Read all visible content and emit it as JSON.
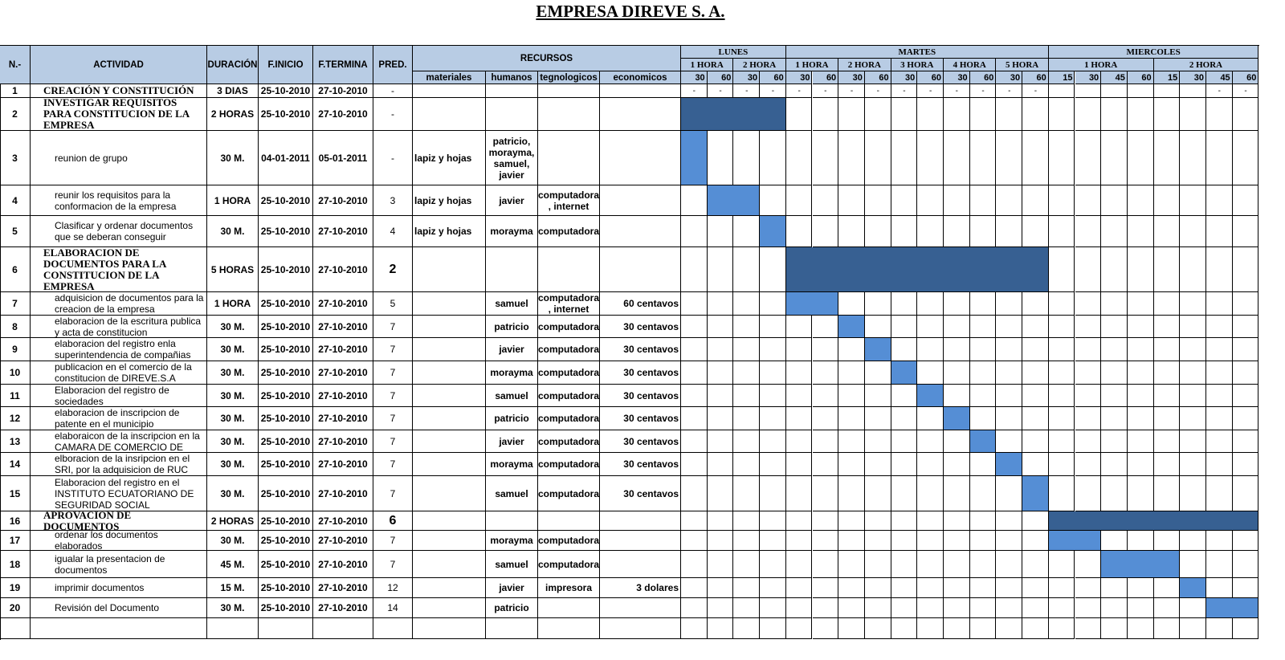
{
  "title": "EMPRESA DIREVE S. A.",
  "table": {
    "columns": [
      "N.-",
      "ACTIVIDAD",
      "DURACIÓN",
      "F.INICIO",
      "F.TERMINA",
      "PRED."
    ],
    "resources": {
      "label": "RECURSOS",
      "columns": [
        "materiales",
        "humanos",
        "tegnologicos",
        "economicos"
      ]
    },
    "days": [
      {
        "name": "LUNES",
        "hours": [
          {
            "label": "1 HORA",
            "minutes": [
              30,
              60
            ]
          },
          {
            "label": "2 HORA",
            "minutes": [
              30,
              60
            ]
          }
        ]
      },
      {
        "name": "MARTES",
        "hours": [
          {
            "label": "1 HORA",
            "minutes": [
              30,
              60
            ]
          },
          {
            "label": "2 HORA",
            "minutes": [
              30,
              60
            ]
          },
          {
            "label": "3 HORA",
            "minutes": [
              30,
              60
            ]
          },
          {
            "label": "4 HORA",
            "minutes": [
              30,
              60
            ]
          },
          {
            "label": "5 HORA",
            "minutes": [
              30,
              60
            ]
          }
        ]
      },
      {
        "name": "MIERCOLES",
        "hours": [
          {
            "label": "1 HORA",
            "minutes": [
              15,
              30,
              45,
              60
            ]
          },
          {
            "label": "2 HORA",
            "minutes": [
              15,
              30,
              45,
              60
            ]
          }
        ]
      }
    ],
    "first_row_timeline": [
      "-",
      "-",
      "-",
      "-",
      "-",
      "-",
      "-",
      "-",
      "-",
      "-",
      "-",
      "-",
      "-",
      "-",
      "-",
      "-"
    ],
    "rows": [
      [
        1,
        "CREACIÓN Y CONSTITUCIÓN",
        "3 DIAS",
        "25-10-2010",
        "27-10-2010",
        "-",
        null,
        null,
        null,
        null
      ],
      [
        2,
        "INVESTIGAR REQUISITOS PARA CONSTITUCION DE LA EMPRESA",
        "2 HORAS",
        "25-10-2010",
        "27-10-2010",
        "-",
        null,
        null,
        null,
        null
      ],
      [
        3,
        "reunion de grupo",
        "30 M.",
        "04-01-2011",
        "05-01-2011",
        "-",
        "lapiz y hojas",
        "patricio, morayma, samuel, javier",
        null,
        null
      ],
      [
        4,
        "reunir los requisitos para la conformacion de la empresa",
        "1 HORA",
        "25-10-2010",
        "27-10-2010",
        3,
        "lapiz y hojas",
        "javier",
        "computadora , internet",
        null
      ],
      [
        5,
        "Clasificar y ordenar documentos que se deberan conseguir",
        "30 M.",
        "25-10-2010",
        "27-10-2010",
        4,
        "lapiz y hojas",
        "morayma",
        "computadora",
        null
      ],
      [
        6,
        "ELABORACION DE DOCUMENTOS PARA LA CONSTITUCION DE LA EMPRESA",
        "5 HORAS",
        "25-10-2010",
        "27-10-2010",
        2,
        null,
        null,
        null,
        null
      ],
      [
        7,
        "adquisicion de documentos para la creacion de la empresa",
        "1 HORA",
        "25-10-2010",
        "27-10-2010",
        5,
        null,
        "samuel",
        "computadora , internet",
        "60 centavos"
      ],
      [
        8,
        "elaboracion de la escritura publica y acta de constitucion",
        "30 M.",
        "25-10-2010",
        "27-10-2010",
        7,
        null,
        "patricio",
        "computadora",
        "30 centavos"
      ],
      [
        9,
        "elaboracion del registro enla superintendencia de compañias",
        "30 M.",
        "25-10-2010",
        "27-10-2010",
        7,
        null,
        "javier",
        "computadora",
        "30 centavos"
      ],
      [
        10,
        "publicacion en el comercio de la constitucion de DIREVE.S.A",
        "30 M.",
        "25-10-2010",
        "27-10-2010",
        7,
        null,
        "morayma",
        "computadora",
        "30 centavos"
      ],
      [
        11,
        "Elaboracion del registro de sociedades",
        "30 M.",
        "25-10-2010",
        "27-10-2010",
        7,
        null,
        "samuel",
        "computadora",
        "30 centavos"
      ],
      [
        12,
        "elaboracion de inscripcion de patente en el municipio",
        "30 M.",
        "25-10-2010",
        "27-10-2010",
        7,
        null,
        "patricio",
        "computadora",
        "30 centavos"
      ],
      [
        13,
        "elaboraicon de la inscripcion en la CAMARA DE COMERCIO DE",
        "30 M.",
        "25-10-2010",
        "27-10-2010",
        7,
        null,
        "javier",
        "computadora",
        "30 centavos"
      ],
      [
        14,
        "elboracion de la insripcion en el SRI, por la adquisicion de RUC",
        "30 M.",
        "25-10-2010",
        "27-10-2010",
        7,
        null,
        "morayma",
        "computadora",
        "30 centavos"
      ],
      [
        15,
        "Elaboracion del registro en el INSTITUTO ECUATORIANO DE SEGURIDAD SOCIAL",
        "30 M.",
        "25-10-2010",
        "27-10-2010",
        7,
        null,
        "samuel",
        "computadora",
        "30 centavos"
      ],
      [
        16,
        "APROVACION DE DOCUMENTOS",
        "2 HORAS",
        "25-10-2010",
        "27-10-2010",
        6,
        null,
        null,
        null,
        null
      ],
      [
        17,
        "ordenar los documentos elaborados",
        "30 M.",
        "25-10-2010",
        "27-10-2010",
        7,
        null,
        "morayma",
        "computadora",
        null
      ],
      [
        18,
        "igualar la presentacion de documentos",
        "45 M.",
        "25-10-2010",
        "27-10-2010",
        7,
        null,
        "samuel",
        "computadora",
        null
      ],
      [
        19,
        "imprimir documentos",
        "15 M.",
        "25-10-2010",
        "27-10-2010",
        12,
        null,
        "javier",
        "impresora",
        "3 dolares"
      ],
      [
        20,
        "Revisión del Documento",
        "30 M.",
        "25-10-2010",
        "27-10-2010",
        14,
        null,
        "patricio",
        null,
        null
      ]
    ]
  }
}
